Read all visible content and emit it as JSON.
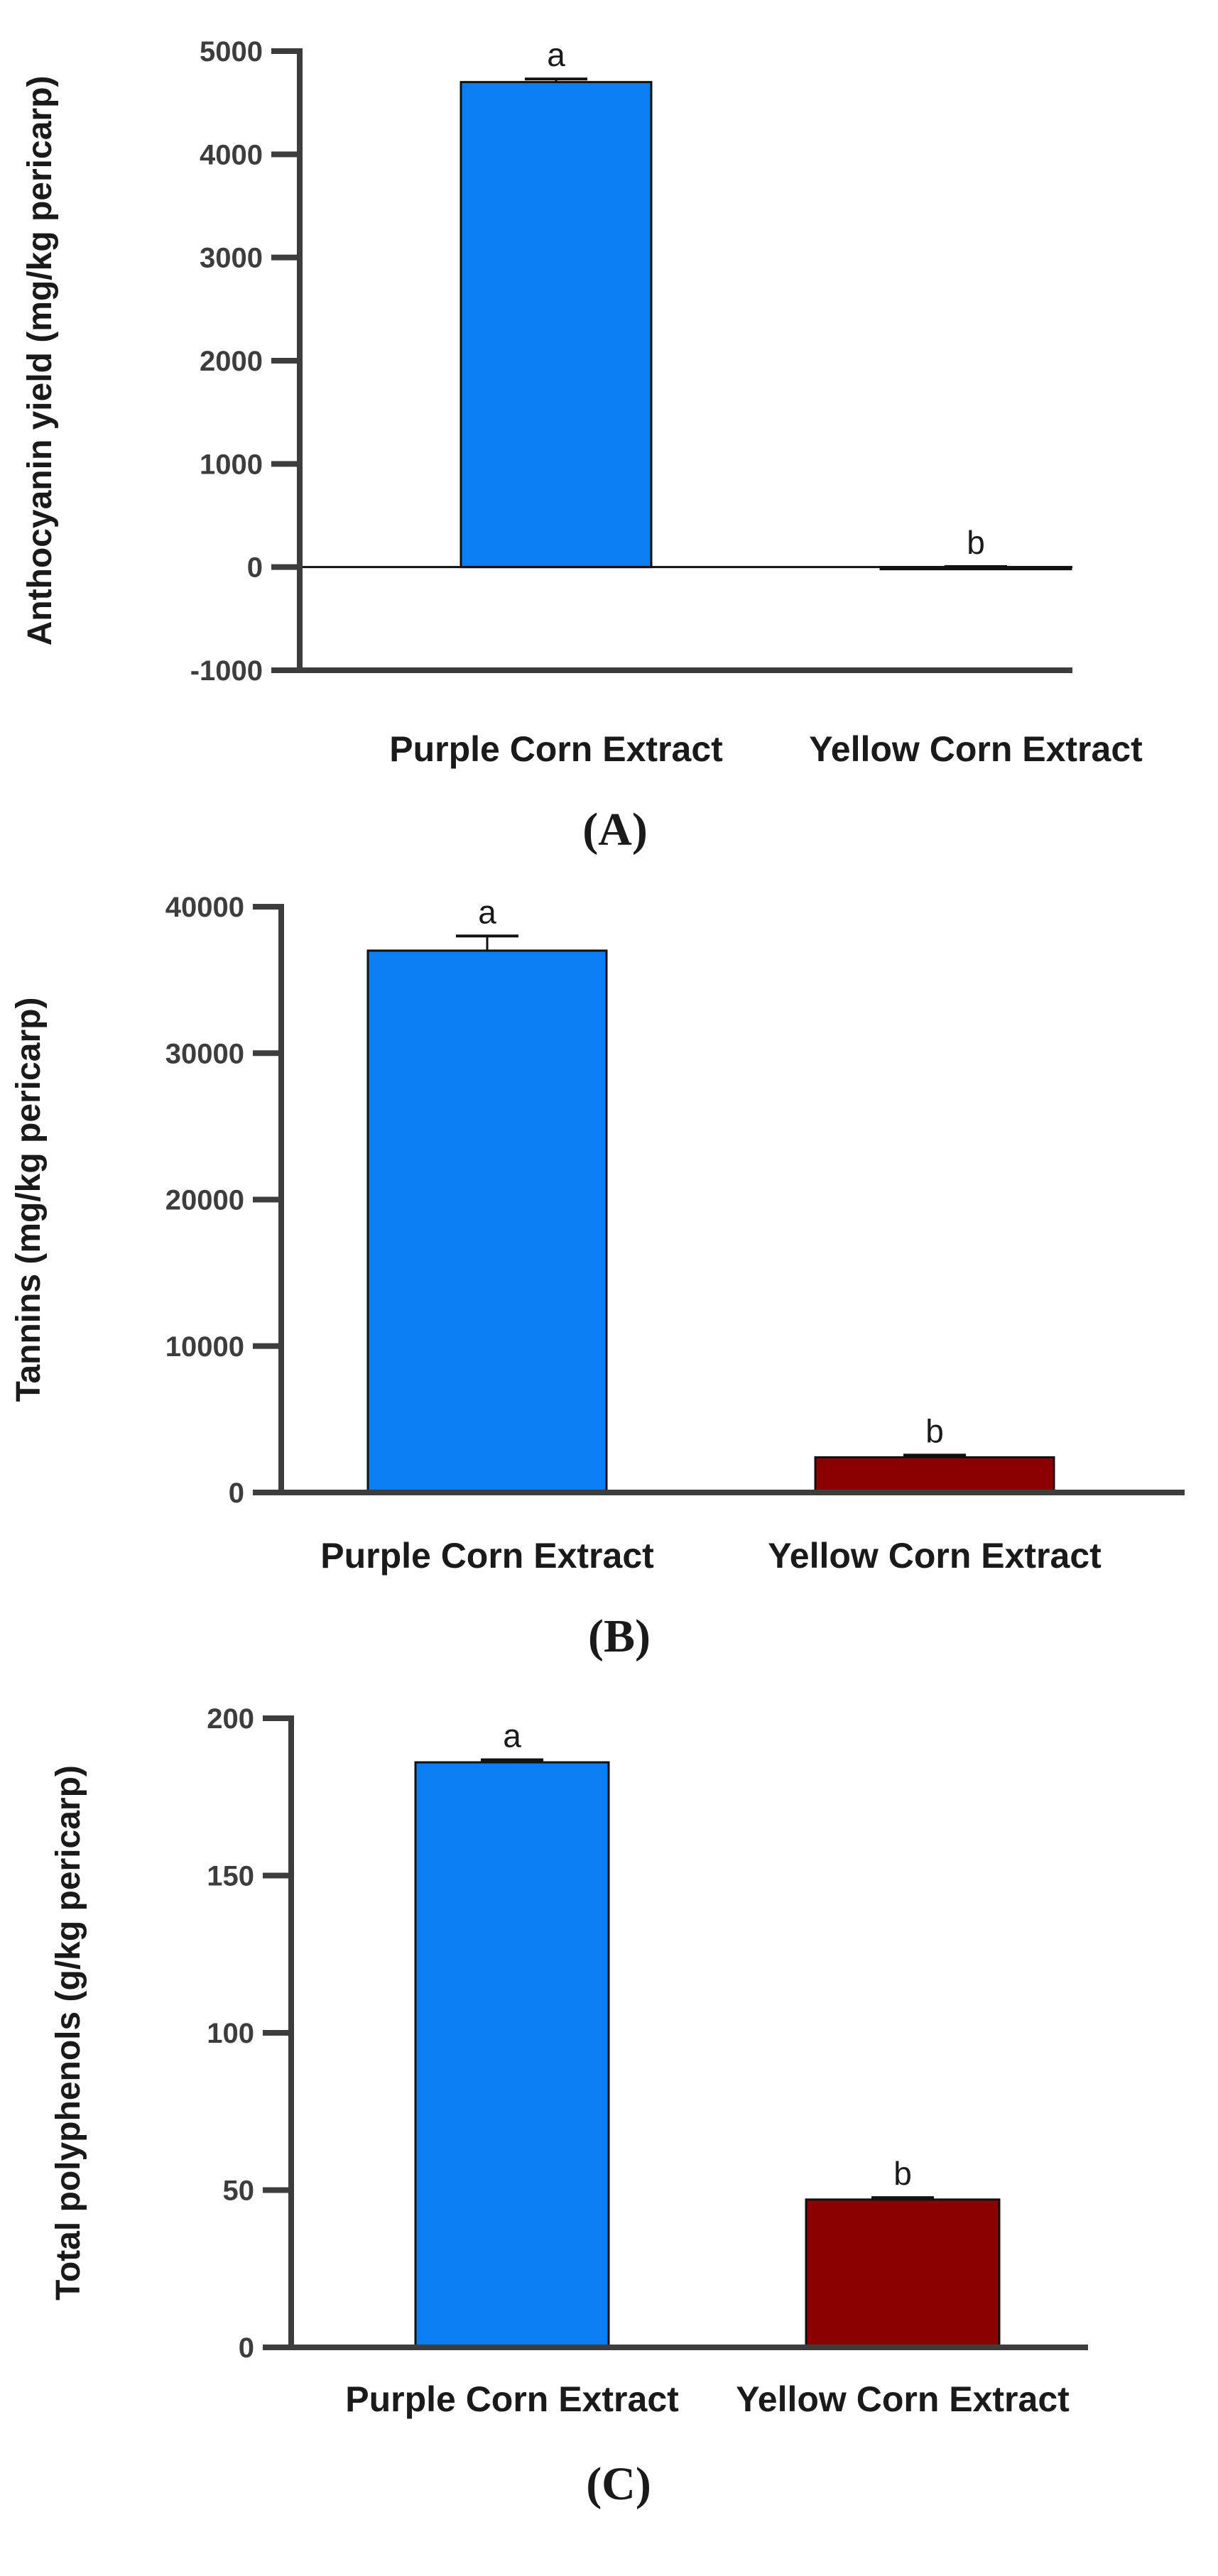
{
  "colors": {
    "purple_bar": "#0a7ff5",
    "yellow_bar": "#8b0000",
    "axis": "#3d3d3d"
  },
  "chart_data": [
    {
      "type": "bar",
      "panel": "(A)",
      "ylabel": "Anthocyanin yield (mg/kg pericarp)",
      "ylim": [
        -1000,
        5000
      ],
      "yticks": [
        -1000,
        0,
        1000,
        2000,
        3000,
        4000,
        5000
      ],
      "tick_labels": [
        "-1000",
        "0",
        "1000",
        "2000",
        "3000",
        "4000",
        "5000"
      ],
      "categories": [
        "Purple Corn Extract",
        "Yellow Corn Extract"
      ],
      "values": [
        4700,
        0
      ],
      "errors": [
        30,
        5
      ],
      "significance": [
        "a",
        "b"
      ],
      "zero_line": true
    },
    {
      "type": "bar",
      "panel": "(B)",
      "ylabel": "Tannins (mg/kg pericarp)",
      "ylim": [
        0,
        40000
      ],
      "yticks": [
        0,
        10000,
        20000,
        30000,
        40000
      ],
      "tick_labels": [
        "0",
        "10000",
        "20000",
        "30000",
        "40000"
      ],
      "categories": [
        "Purple Corn Extract",
        "Yellow Corn Extract"
      ],
      "values": [
        37000,
        2400
      ],
      "errors": [
        1000,
        150
      ],
      "significance": [
        "a",
        "b"
      ],
      "zero_line": false
    },
    {
      "type": "bar",
      "panel": "(C)",
      "ylabel": "Total polyphenols (g/kg pericarp)",
      "ylim": [
        0,
        200
      ],
      "yticks": [
        0,
        50,
        100,
        150,
        200
      ],
      "tick_labels": [
        "0",
        "50",
        "100",
        "150",
        "200"
      ],
      "categories": [
        "Purple Corn Extract",
        "Yellow Corn Extract"
      ],
      "values": [
        186,
        47
      ],
      "errors": [
        0.8,
        0.6
      ],
      "significance": [
        "a",
        "b"
      ],
      "zero_line": false
    }
  ]
}
